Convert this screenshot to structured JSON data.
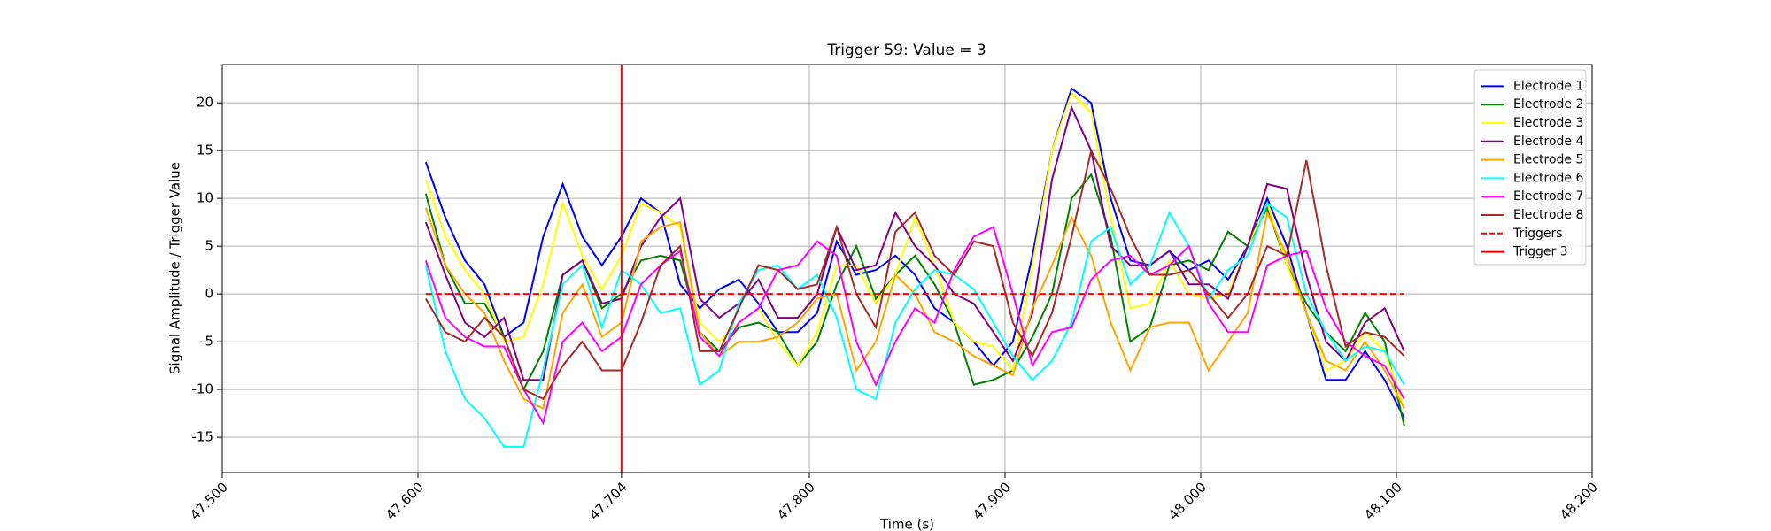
{
  "chart_data": {
    "type": "line",
    "title": "Trigger 59: Value = 3",
    "x_label": "Time (s)",
    "y_label": "Signal Amplitude / Trigger Value",
    "x": [
      47.604,
      47.614,
      47.624,
      47.634,
      47.644,
      47.654,
      47.664,
      47.674,
      47.684,
      47.694,
      47.704,
      47.714,
      47.724,
      47.734,
      47.744,
      47.754,
      47.764,
      47.774,
      47.784,
      47.794,
      47.804,
      47.814,
      47.824,
      47.834,
      47.844,
      47.854,
      47.864,
      47.874,
      47.884,
      47.894,
      47.904,
      47.914,
      47.924,
      47.934,
      47.944,
      47.954,
      47.964,
      47.974,
      47.984,
      47.994,
      48.004,
      48.014,
      48.024,
      48.034,
      48.044,
      48.054,
      48.064,
      48.074,
      48.084,
      48.094,
      48.104
    ],
    "series": [
      {
        "name": "Electrode 1",
        "color": "#0000ff",
        "values": [
          13.8,
          8,
          3.5,
          1,
          -4.5,
          -3,
          6,
          11.5,
          6,
          3,
          6,
          10,
          8.5,
          1,
          -1.5,
          0.5,
          1.5,
          -1,
          -4,
          -4,
          -2,
          5.5,
          2,
          2.5,
          4,
          2,
          -1.5,
          -3,
          -5,
          -7.5,
          -5,
          4,
          15,
          21.5,
          20,
          10,
          3.5,
          3,
          4.5,
          2.5,
          3.5,
          1.5,
          5,
          10,
          5,
          -2,
          -9,
          -9,
          -6,
          -9,
          -13
        ]
      },
      {
        "name": "Electrode 2",
        "color": "#008000",
        "values": [
          10.5,
          3,
          -1,
          -1,
          -4.5,
          -10,
          -6,
          2,
          3.5,
          -1.5,
          0,
          3.5,
          4,
          3.5,
          -4,
          -6,
          -3.5,
          -3,
          -4,
          -7.5,
          -5,
          1,
          5,
          -0.5,
          2,
          4,
          1,
          -3,
          -9.5,
          -9,
          -8,
          -4.5,
          0,
          10,
          12.5,
          6,
          -5,
          -3.5,
          3,
          3.5,
          2.5,
          6.5,
          5,
          9,
          3,
          -1,
          -4,
          -6,
          -2,
          -5,
          -13.8
        ]
      },
      {
        "name": "Electrode 3",
        "color": "#ffff00",
        "values": [
          12,
          6,
          2.5,
          0,
          -5,
          -4.5,
          1,
          9.5,
          4,
          0.5,
          4,
          9.5,
          8.5,
          7,
          -3,
          -5,
          -3,
          -1.5,
          -5,
          -7.5,
          -4,
          3,
          3,
          -1,
          2,
          8,
          3,
          -3,
          -5,
          -5.5,
          -8,
          3,
          15,
          21,
          19,
          8,
          -1.5,
          -1,
          3.5,
          0,
          -0.5,
          0,
          5,
          9.5,
          3,
          -2,
          -8,
          -7,
          -4,
          -6,
          -12
        ]
      },
      {
        "name": "Electrode 4",
        "color": "#800080",
        "values": [
          7.5,
          2,
          -3,
          -4.5,
          -2.5,
          -9,
          -9,
          2,
          3.5,
          -1,
          -0.5,
          5,
          8,
          10,
          -0.5,
          -2.5,
          -1,
          1.5,
          -2.5,
          -2.5,
          0,
          7,
          2.5,
          3,
          8.5,
          5,
          3,
          0,
          -1,
          -4,
          -7,
          -2,
          12,
          19.5,
          15,
          5,
          3,
          3,
          4.5,
          1,
          1,
          -0.5,
          5,
          11.5,
          11,
          2,
          -5,
          -7,
          -3,
          -1.5,
          -6
        ]
      },
      {
        "name": "Electrode 5",
        "color": "#ffa500",
        "values": [
          9,
          3,
          0,
          -2,
          -7,
          -11,
          -12,
          -2,
          1,
          -4.5,
          -3,
          5.5,
          7,
          7.5,
          -4,
          -6.5,
          -5,
          -5,
          -4.5,
          -3,
          -0.5,
          0,
          -8,
          -5,
          2,
          0,
          -4,
          -5,
          -6.5,
          -7.5,
          -8.5,
          -1.5,
          3,
          8,
          4,
          -3,
          -8,
          -3.5,
          -3,
          -3,
          -8,
          -5,
          -2,
          8.5,
          4,
          -2,
          -7,
          -8,
          -5,
          -8,
          -12
        ]
      },
      {
        "name": "Electrode 6",
        "color": "#00ffff",
        "values": [
          3,
          -6,
          -11,
          -13,
          -16,
          -16,
          -8,
          1,
          3,
          -3.5,
          2.5,
          1,
          -2,
          -1.5,
          -9.5,
          -8,
          -1,
          2.5,
          3,
          0.5,
          2,
          -2.5,
          -10,
          -11,
          -3,
          0.5,
          2.5,
          2,
          0.5,
          -3,
          -6.5,
          -9,
          -7,
          -3,
          5.5,
          7,
          1,
          3,
          8.5,
          5,
          -0.5,
          2.5,
          4,
          9.5,
          8,
          0,
          -4,
          -7,
          -5.5,
          -6,
          -9.5
        ]
      },
      {
        "name": "Electrode 7",
        "color": "#ff00ff",
        "values": [
          3.5,
          -2.5,
          -4.5,
          -5.5,
          -5.5,
          -10,
          -13.5,
          -5,
          -3,
          -6,
          -4.5,
          1,
          3,
          4.5,
          -4.5,
          -6.5,
          -3,
          -1.5,
          2.5,
          3,
          5.5,
          4,
          -5,
          -9.5,
          -5,
          -1.5,
          -3,
          2.5,
          6,
          7,
          0,
          -7.5,
          -4,
          -3.5,
          1.5,
          3.5,
          4,
          2,
          3,
          5,
          -1,
          -4,
          -4,
          3,
          4,
          4.5,
          -1.5,
          -5,
          -6.5,
          -7.5,
          -11
        ]
      },
      {
        "name": "Electrode 8",
        "color": "#a52a2a",
        "values": [
          -0.5,
          -4,
          -5,
          -2.5,
          -4.5,
          -10,
          -11,
          -7.5,
          -5,
          -8,
          -8,
          -3,
          3,
          5,
          -6,
          -6,
          -1.5,
          3,
          2.5,
          0.5,
          1,
          7,
          0,
          -3.5,
          6.5,
          8.5,
          4,
          2,
          5.5,
          5,
          -3,
          -6.5,
          -2,
          6,
          15,
          11,
          6,
          2,
          2,
          2.5,
          0,
          -2.5,
          0,
          5,
          4,
          14,
          3,
          -5.5,
          -4,
          -4.5,
          -6.5
        ]
      },
      {
        "name": "Triggers",
        "color": "#ff0000",
        "dashed": true,
        "x": [
          47.604,
          48.104
        ],
        "values": [
          0,
          0
        ]
      }
    ],
    "vlines": [
      {
        "name": "Trigger 3",
        "color": "#ff0000",
        "x": 47.704
      }
    ],
    "xlim": [
      47.5,
      48.2
    ],
    "xticks": [
      {
        "value": 47.5,
        "label": "47.500"
      },
      {
        "value": 47.6,
        "label": "47.600"
      },
      {
        "value": 47.704,
        "label": "47.704"
      },
      {
        "value": 47.8,
        "label": "47.800"
      },
      {
        "value": 47.9,
        "label": "47.900"
      },
      {
        "value": 48.0,
        "label": "48.000"
      },
      {
        "value": 48.1,
        "label": "48.100"
      },
      {
        "value": 48.2,
        "label": "48.200"
      }
    ],
    "ylim": [
      -18.7,
      24.0
    ],
    "yticks": [
      -15,
      -10,
      -5,
      0,
      5,
      10,
      15,
      20
    ],
    "grid": true,
    "legend": "upper right"
  }
}
